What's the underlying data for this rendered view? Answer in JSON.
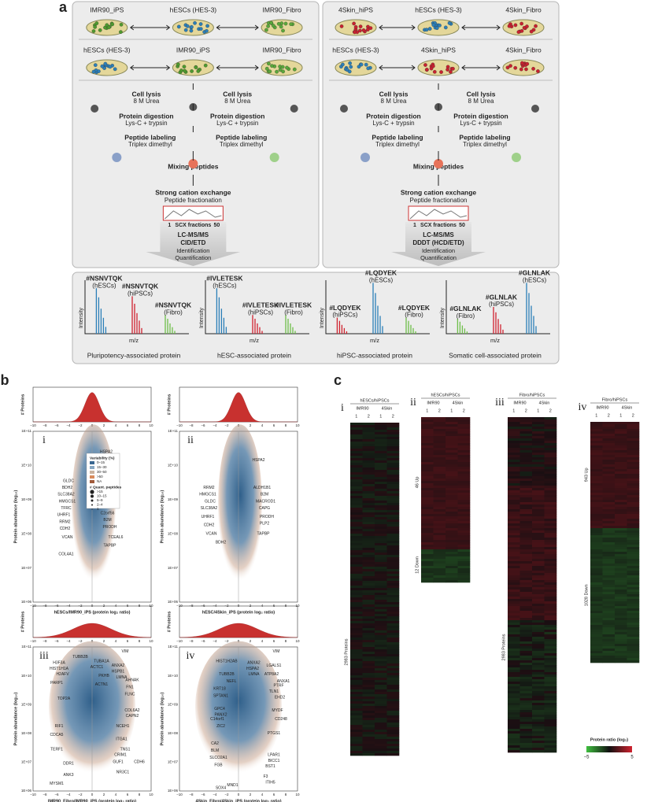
{
  "panel_a": {
    "label": "a",
    "left": {
      "row1": [
        "IMR90_iPS",
        "hESCs (HES-3)",
        "IMR90_Fibro"
      ],
      "row2": [
        "hESCs (HES-3)",
        "IMR90_iPS",
        "IMR90_Fibro"
      ],
      "steps": {
        "cell_lysis": "Cell lysis",
        "urea": "8 M Urea",
        "digestion": "Protein digestion",
        "enzymes": "Lys-C + trypsin",
        "labeling": "Peptide labeling",
        "dimethyl": "Triplex dimethyl",
        "mixing": "Mixing peptides",
        "scx": "Strong cation exchange",
        "fractionation": "Peptide fractionation",
        "fractions": [
          "1",
          "SCX fractions",
          "50"
        ],
        "lcms": "LC-MS/MS",
        "method": "CID/ETD",
        "ident": "Identification",
        "quant": "Quantification"
      }
    },
    "right": {
      "row1": [
        "4Skin_hiPS",
        "hESCs (HES-3)",
        "4Skin_Fibro"
      ],
      "row2": [
        "hESCs (HES-3)",
        "4Skin_hiPS",
        "4Skin_Fibro"
      ],
      "steps": {
        "cell_lysis": "Cell lysis",
        "urea": "8 M Urea",
        "digestion": "Protein digestion",
        "enzymes": "Lys-C + trypsin",
        "labeling": "Peptide labeling",
        "dimethyl": "Triplex dimethyl",
        "mixing": "Mixing peptides",
        "scx": "Strong cation exchange",
        "fractionation": "Peptide fractionation",
        "fractions": [
          "1",
          "SCX fractions",
          "50"
        ],
        "lcms": "LC-MS/MS",
        "method": "DDDT (HCD/ETD)",
        "ident": "Identification",
        "quant": "Quantification"
      }
    },
    "intensity": "Intensity",
    "mz": "m/z",
    "spectra": [
      {
        "caption": "Pluripotency-associated protein",
        "labels": [
          [
            "#NSNVTQK",
            "(hESCs)"
          ],
          [
            "#NSNVTQK",
            "(hiPSCs)"
          ],
          [
            "#NSNVTQK",
            "(Fibro)"
          ]
        ]
      },
      {
        "caption": "hESC-associated protein",
        "labels": [
          [
            "#IVLETESK",
            "(hESCs)"
          ],
          [
            "#IVLETESK",
            "(hiPSCs)"
          ],
          [
            "#IVLETESK",
            "(Fibro)"
          ]
        ]
      },
      {
        "caption": "hiPSC-associated protein",
        "labels": [
          [
            "#LQDYEK",
            "(hiPSCs)"
          ],
          [
            "#LQDYEK",
            "(hESCs)"
          ],
          [
            "#LQDYEK",
            "(Fibro)"
          ]
        ]
      },
      {
        "caption": "Somatic cell-associated protein",
        "labels": [
          [
            "#GLNLAK",
            "(Fibro)"
          ],
          [
            "#GLNLAK",
            "(hiPSCs)"
          ],
          [
            "#GLNLAK",
            "(hESCs)"
          ]
        ]
      }
    ]
  },
  "panel_b": {
    "label": "b",
    "hist_ylabel": "# Proteins",
    "ylabel": "Protein abundance (log₁₀)",
    "xticks": [
      "−10",
      "−8",
      "−6",
      "−4",
      "−2",
      "0",
      "2",
      "4",
      "6",
      "8",
      "10"
    ],
    "yticks": [
      "1E+06",
      "1E+07",
      "1E+08",
      "1E+09",
      "1E+10",
      "1E+11"
    ],
    "legend": {
      "variability_title": "Variability (%)",
      "variability": [
        "0–15",
        "15–30",
        "30–50",
        ">50",
        "NA"
      ],
      "peptides_title": "# Quant. peptides",
      "peptides": [
        ">15",
        "10–15",
        "5–9",
        "2–4",
        "1"
      ]
    },
    "plots": [
      {
        "numeral": "i",
        "xlabel": "hESCs/IMR90_iPS (protein log₂ ratio)",
        "genes": [
          "HSPA2",
          "GLDC",
          "BDH2",
          "SLC38A2",
          "HMGCS1",
          "TFRC",
          "UHRF1",
          "RRM2",
          "CDH2",
          "VCAN",
          "COL4A1",
          "PLP2",
          "C2orf56",
          "B2M",
          "PRODH",
          "TCEAL6",
          "TAPBP"
        ]
      },
      {
        "numeral": "ii",
        "xlabel": "hESC/4Skin_iPS (protein log₂ ratio)",
        "genes": [
          "HSPA2",
          "RRM2",
          "HMGCS1",
          "GLDC",
          "SLC38A2",
          "UHRF1",
          "CDH2",
          "VCAN",
          "BDH2",
          "ALDH1B1",
          "B2M",
          "MACROD1",
          "CAPG",
          "PRODH",
          "PLP2",
          "TAPBP"
        ]
      },
      {
        "numeral": "iii",
        "xlabel": "IMR90_Fibro/IMR90_iPS (protein log₂ ratio)",
        "genes": [
          "VIM",
          "TUBA1A",
          "ANXA2",
          "ACTC1",
          "HSPB1",
          "TUBB2B",
          "H3F3A",
          "PKHB",
          "LMNA",
          "AHNAK",
          "HIST1H1A",
          "H2AFV",
          "ACTN1",
          "FN1",
          "PARP1",
          "FLNC",
          "TOP2A",
          "COL6A2",
          "CAPN2",
          "RIF1",
          "NCEH1",
          "CDCA5",
          "ITGA1",
          "TNS1",
          "TERF1",
          "CRIM1",
          "GUF1",
          "CDH6",
          "DDR1",
          "NR3C1",
          "ANK3",
          "MYSM1"
        ]
      },
      {
        "numeral": "iv",
        "xlabel": "4Skin_Fibro/4Skin_iPS (protein log₂ ratio)",
        "genes": [
          "VIM",
          "HIST1H2AB",
          "ANXA2",
          "LGALS1",
          "HSPA2",
          "ATP8A2",
          "LMNA",
          "ANXA1",
          "TUBB2B",
          "NEFL",
          "PTRF",
          "TLN1",
          "KRT18",
          "EHD2",
          "SPTAN1",
          "MYDF",
          "CD248",
          "GPC4",
          "PANX2",
          "C14orf1",
          "ZIC2",
          "PTGS1",
          "CA2",
          "LPAR1",
          "BLM",
          "BICC1",
          "SLCO2A1",
          "FGB",
          "BST1",
          "F3",
          "ITIH5",
          "MND1",
          "SOX4"
        ]
      }
    ]
  },
  "panel_c": {
    "label": "c",
    "cell_lines": [
      "IMR90",
      "4Skin"
    ],
    "replicates": [
      "1",
      "2"
    ],
    "maps": [
      {
        "numeral": "i",
        "title": "hESCs/hiPSCs",
        "side": [
          "2983 Proteins"
        ]
      },
      {
        "numeral": "ii",
        "title": "hESCs/hiPSCs",
        "side": [
          "46 Up",
          "12 Down"
        ]
      },
      {
        "numeral": "iii",
        "title": "Fibro/hiPSCs",
        "side": [
          "2983 Proteins"
        ]
      },
      {
        "numeral": "iv",
        "title": "Fibro/hiPSCs",
        "side": [
          "943 Up",
          "1028 Down"
        ]
      }
    ],
    "scale_title": "Protein ratio (log₂)",
    "scale_ticks": [
      "−5",
      "5"
    ]
  }
}
